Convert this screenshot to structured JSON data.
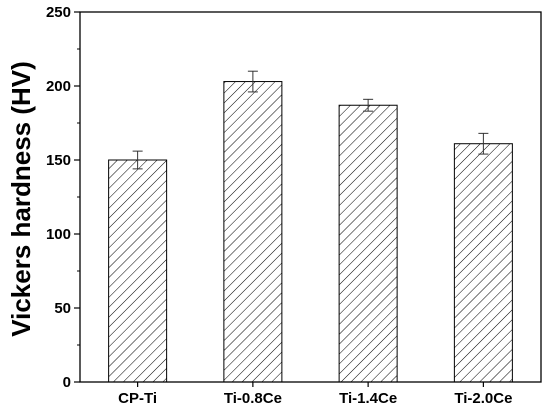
{
  "chart_data": {
    "type": "bar",
    "title": "",
    "xlabel": "",
    "ylabel": "Vickers hardness (HV)",
    "categories": [
      "CP-Ti",
      "Ti-0.8Ce",
      "Ti-1.4Ce",
      "Ti-2.0Ce"
    ],
    "values": [
      150,
      203,
      187,
      161
    ],
    "errors": [
      6,
      7,
      4,
      7
    ],
    "ylim": [
      0,
      250
    ],
    "yticks": [
      0,
      50,
      100,
      150,
      200,
      250
    ],
    "grid": false,
    "legend": "none",
    "bar_fill": "diagonal-hatch",
    "colors": {
      "bar_stroke": "#000000",
      "hatch": "#000000",
      "background": "#ffffff"
    }
  }
}
